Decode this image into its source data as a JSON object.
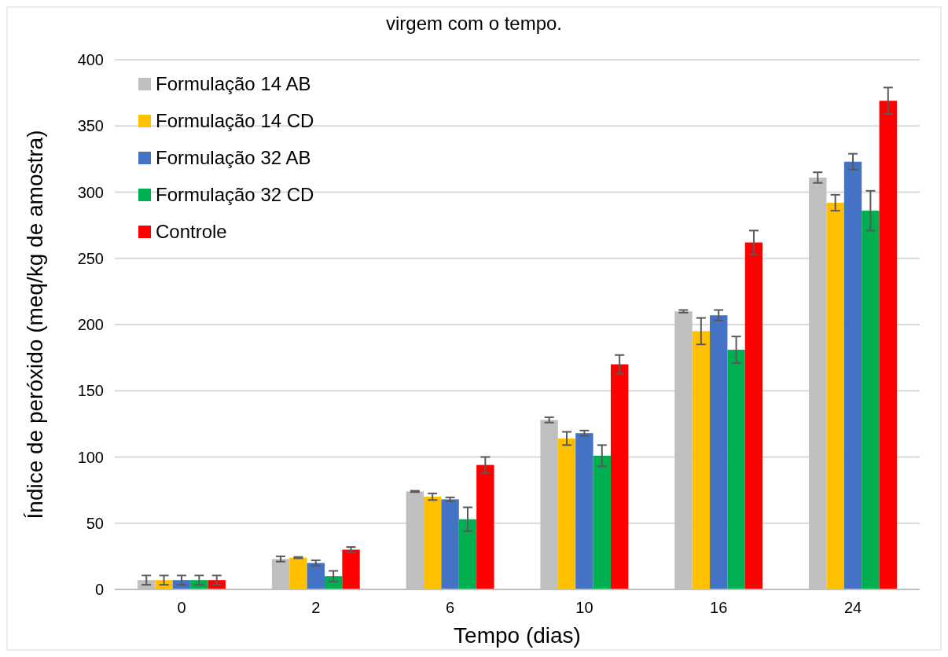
{
  "chart_data": {
    "type": "bar",
    "title": "virgem com o tempo.",
    "xlabel": "Tempo (dias)",
    "ylabel": "Índice de peróxido (meq/kg de amostra)",
    "categories": [
      "0",
      "2",
      "6",
      "10",
      "16",
      "24"
    ],
    "series": [
      {
        "name": "Formulação 14 AB",
        "color": "#bfbfbf",
        "values": [
          7,
          23,
          74,
          128,
          210,
          311
        ],
        "errors": [
          3.5,
          2,
          0.5,
          2,
          1,
          4
        ]
      },
      {
        "name": "Formulação 14 CD",
        "color": "#ffc000",
        "values": [
          7,
          24,
          70,
          114,
          195,
          292
        ],
        "errors": [
          3.5,
          0.5,
          2.5,
          5,
          10,
          6
        ]
      },
      {
        "name": "Formulação 32 AB",
        "color": "#4472c4",
        "values": [
          7,
          20,
          68,
          118,
          207,
          323
        ],
        "errors": [
          3.5,
          2,
          1.5,
          2,
          4,
          6
        ]
      },
      {
        "name": "Formulação 32 CD",
        "color": "#00b050",
        "values": [
          7,
          10,
          53,
          101,
          181,
          286
        ],
        "errors": [
          3.5,
          4,
          9,
          8,
          10,
          15
        ]
      },
      {
        "name": "Controle",
        "color": "#ff0000",
        "values": [
          7,
          30,
          94,
          170,
          262,
          369
        ],
        "errors": [
          3.5,
          2,
          6,
          7,
          9,
          10
        ]
      }
    ],
    "ylim": [
      0,
      400
    ],
    "yticks": [
      0,
      50,
      100,
      150,
      200,
      250,
      300,
      350,
      400
    ],
    "grid": "y",
    "legend": "top left"
  }
}
